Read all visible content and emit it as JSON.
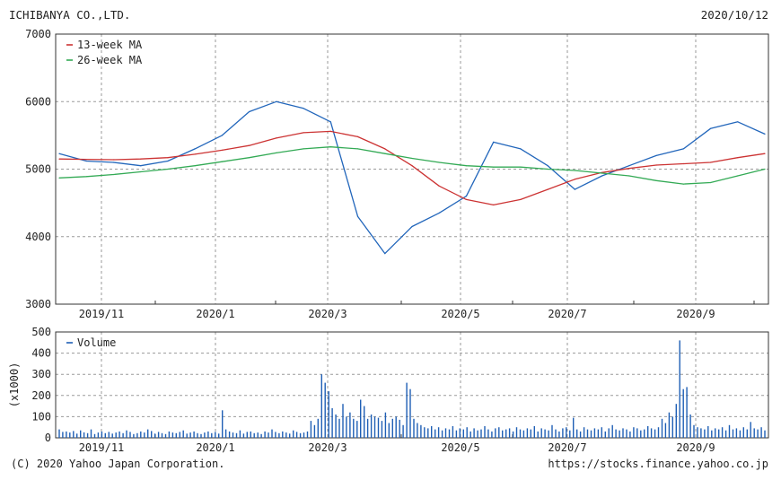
{
  "header": {
    "company": "ICHIBANYA CO.,LTD.",
    "date": "2020/10/12"
  },
  "footer": {
    "copyright": "(C) 2020 Yahoo Japan Corporation.",
    "url": "https://stocks.finance.yahoo.co.jp"
  },
  "colors": {
    "price": "#2266bb",
    "ma13": "#cc3333",
    "ma26": "#33aa55",
    "volume": "#1f5fb5",
    "grid": "#9a9a9a",
    "frame": "#333333"
  },
  "chart_data": [
    {
      "type": "line",
      "title": "",
      "xlabel": "",
      "ylabel": "",
      "ylim": [
        3000,
        7000
      ],
      "yticks": [
        "7000",
        "6000",
        "5000",
        "4000",
        "3000"
      ],
      "grid": true,
      "legend": "top-left",
      "x_tick_labels": [
        "2019/11",
        "2020/1",
        "2020/3",
        "2020/5",
        "2020/7",
        "2020/9"
      ],
      "x": [
        "2019/10/14",
        "2019/10/28",
        "2019/11/11",
        "2019/11/25",
        "2019/12/09",
        "2019/12/23",
        "2020/01/06",
        "2020/01/20",
        "2020/02/03",
        "2020/02/17",
        "2020/03/02",
        "2020/03/16",
        "2020/03/30",
        "2020/04/13",
        "2020/04/27",
        "2020/05/11",
        "2020/05/25",
        "2020/06/08",
        "2020/06/22",
        "2020/07/06",
        "2020/07/20",
        "2020/08/03",
        "2020/08/17",
        "2020/08/31",
        "2020/09/14",
        "2020/09/28",
        "2020/10/12"
      ],
      "series": [
        {
          "name": "",
          "values": [
            5230,
            5120,
            5100,
            5050,
            5120,
            5300,
            5500,
            5850,
            6000,
            5900,
            5700,
            4300,
            3750,
            4150,
            4350,
            4600,
            5400,
            5300,
            5050,
            4700,
            4900,
            5050,
            5200,
            5300,
            5600,
            5700,
            5520
          ]
        },
        {
          "name": "13-week MA",
          "values": [
            5150,
            5145,
            5140,
            5150,
            5170,
            5220,
            5280,
            5350,
            5460,
            5540,
            5560,
            5480,
            5300,
            5050,
            4750,
            4550,
            4470,
            4550,
            4700,
            4850,
            4950,
            5010,
            5060,
            5080,
            5100,
            5170,
            5230
          ]
        },
        {
          "name": "26-week MA",
          "values": [
            4870,
            4890,
            4920,
            4960,
            5000,
            5050,
            5110,
            5170,
            5240,
            5300,
            5330,
            5300,
            5230,
            5160,
            5100,
            5050,
            5030,
            5030,
            5000,
            4980,
            4940,
            4900,
            4830,
            4780,
            4800,
            4900,
            5000
          ]
        }
      ]
    },
    {
      "type": "bar",
      "title": "",
      "xlabel": "",
      "ylabel": "(x1000)",
      "ylim": [
        0,
        500
      ],
      "yticks": [
        "500",
        "400",
        "300",
        "200",
        "100",
        "0"
      ],
      "grid": true,
      "legend": "top-left",
      "x_tick_labels": [
        "2019/11",
        "2020/1",
        "2020/3",
        "2020/5",
        "2020/7",
        "2020/9"
      ],
      "series": [
        {
          "name": "Volume",
          "values": [
            40,
            28,
            30,
            25,
            32,
            20,
            35,
            26,
            22,
            40,
            18,
            25,
            30,
            22,
            28,
            20,
            25,
            30,
            22,
            35,
            28,
            18,
            22,
            30,
            25,
            40,
            32,
            20,
            28,
            22,
            18,
            30,
            25,
            22,
            28,
            35,
            20,
            25,
            30,
            22,
            18,
            25,
            30,
            22,
            28,
            20,
            130,
            40,
            30,
            25,
            22,
            35,
            20,
            28,
            30,
            22,
            25,
            18,
            30,
            25,
            40,
            28,
            22,
            30,
            25,
            20,
            35,
            28,
            22,
            25,
            30,
            80,
            60,
            90,
            300,
            260,
            220,
            140,
            110,
            90,
            160,
            100,
            120,
            90,
            80,
            180,
            150,
            90,
            110,
            100,
            95,
            80,
            120,
            70,
            90,
            100,
            85,
            60,
            260,
            230,
            90,
            70,
            60,
            50,
            45,
            55,
            40,
            50,
            35,
            45,
            40,
            55,
            35,
            45,
            40,
            50,
            30,
            45,
            35,
            40,
            55,
            40,
            30,
            45,
            50,
            35,
            40,
            45,
            30,
            50,
            40,
            35,
            45,
            40,
            55,
            30,
            45,
            40,
            35,
            60,
            40,
            30,
            45,
            50,
            35,
            95,
            40,
            30,
            50,
            40,
            35,
            45,
            40,
            50,
            30,
            45,
            60,
            40,
            35,
            45,
            40,
            30,
            50,
            45,
            35,
            40,
            55,
            45,
            40,
            50,
            90,
            70,
            120,
            100,
            160,
            460,
            230,
            240,
            110,
            60,
            50,
            45,
            40,
            55,
            35,
            45,
            40,
            50,
            35,
            60,
            40,
            45,
            35,
            50,
            40,
            75,
            45,
            40,
            50,
            35
          ]
        }
      ]
    }
  ]
}
